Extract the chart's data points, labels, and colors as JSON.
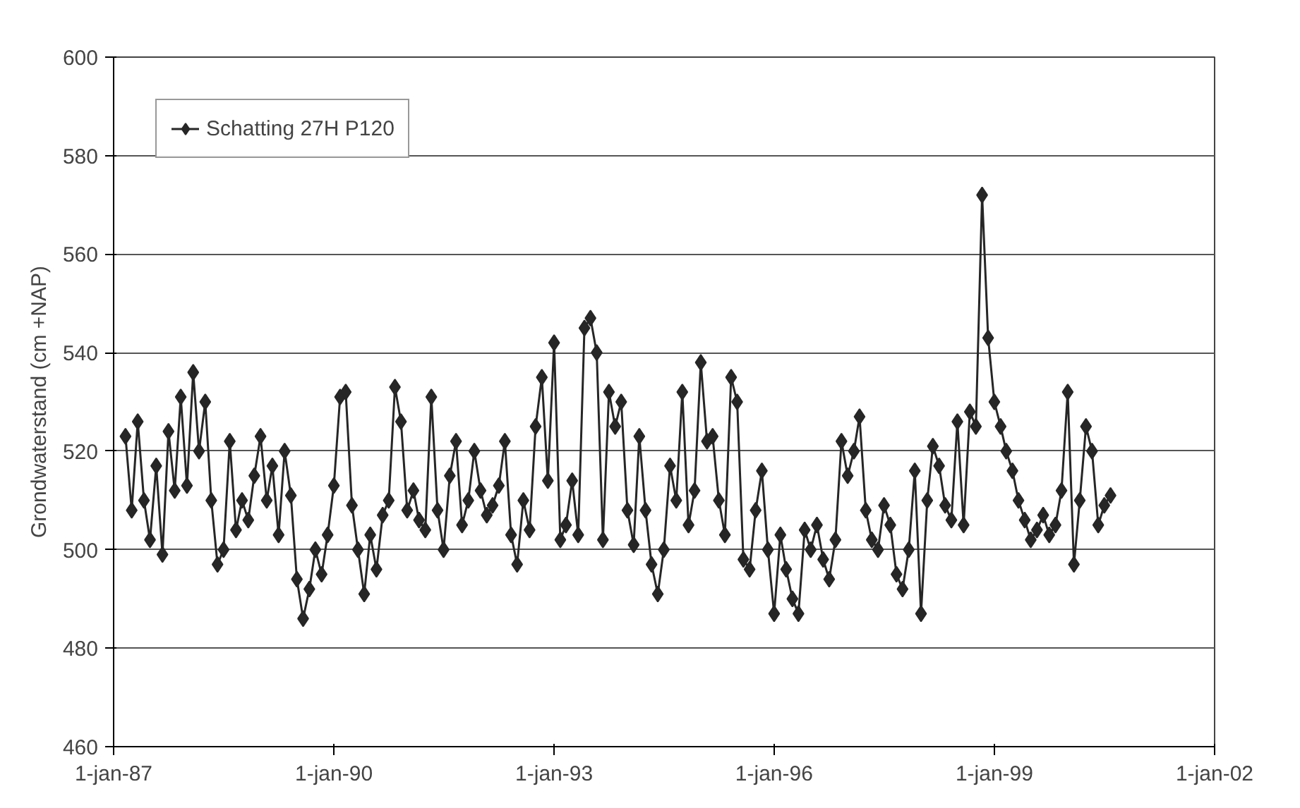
{
  "chart_data": {
    "type": "line",
    "ylabel": "Grondwaterstand (cm +NAP)",
    "x": [
      "1987-03",
      "1987-04",
      "1987-05",
      "1987-06",
      "1987-07",
      "1987-08",
      "1987-09",
      "1987-10",
      "1987-11",
      "1987-12",
      "1988-01",
      "1988-02",
      "1988-03",
      "1988-04",
      "1988-05",
      "1988-06",
      "1988-07",
      "1988-08",
      "1988-09",
      "1988-10",
      "1988-11",
      "1988-12",
      "1989-01",
      "1989-02",
      "1989-03",
      "1989-04",
      "1989-05",
      "1989-06",
      "1989-07",
      "1989-08",
      "1989-09",
      "1989-10",
      "1989-11",
      "1989-12",
      "1990-01",
      "1990-02",
      "1990-03",
      "1990-04",
      "1990-05",
      "1990-06",
      "1990-07",
      "1990-08",
      "1990-09",
      "1990-10",
      "1990-11",
      "1990-12",
      "1991-01",
      "1991-02",
      "1991-03",
      "1991-04",
      "1991-05",
      "1991-06",
      "1991-07",
      "1991-08",
      "1991-09",
      "1991-10",
      "1991-11",
      "1991-12",
      "1992-01",
      "1992-02",
      "1992-03",
      "1992-04",
      "1992-05",
      "1992-06",
      "1992-07",
      "1992-08",
      "1992-09",
      "1992-10",
      "1992-11",
      "1992-12",
      "1993-01",
      "1993-02",
      "1993-03",
      "1993-04",
      "1993-05",
      "1993-06",
      "1993-07",
      "1993-08",
      "1993-09",
      "1993-10",
      "1993-11",
      "1993-12",
      "1994-01",
      "1994-02",
      "1994-03",
      "1994-04",
      "1994-05",
      "1994-06",
      "1994-07",
      "1994-08",
      "1994-09",
      "1994-10",
      "1994-11",
      "1994-12",
      "1995-01",
      "1995-02",
      "1995-03",
      "1995-04",
      "1995-05",
      "1995-06",
      "1995-07",
      "1995-08",
      "1995-09",
      "1995-10",
      "1995-11",
      "1995-12",
      "1996-01",
      "1996-02",
      "1996-03",
      "1996-04",
      "1996-05",
      "1996-06",
      "1996-07",
      "1996-08",
      "1996-09",
      "1996-10",
      "1996-11",
      "1996-12",
      "1997-01",
      "1997-02",
      "1997-03",
      "1997-04",
      "1997-05",
      "1997-06",
      "1997-07",
      "1997-08",
      "1997-09",
      "1997-10",
      "1997-11",
      "1997-12",
      "1998-01",
      "1998-02",
      "1998-03",
      "1998-04",
      "1998-05",
      "1998-06",
      "1998-07",
      "1998-08",
      "1998-09",
      "1998-10",
      "1998-11",
      "1998-12",
      "1999-01",
      "1999-02",
      "1999-03",
      "1999-04",
      "1999-05",
      "1999-06",
      "1999-07",
      "1999-08",
      "1999-09",
      "1999-10",
      "1999-11",
      "1999-12",
      "2000-01",
      "2000-02",
      "2000-03",
      "2000-04",
      "2000-05",
      "2000-06",
      "2000-07",
      "2000-08"
    ],
    "series": [
      {
        "name": "Schatting 27H P120",
        "color": "#262626",
        "values": [
          523,
          508,
          526,
          510,
          502,
          517,
          499,
          524,
          512,
          531,
          513,
          536,
          520,
          530,
          510,
          497,
          500,
          522,
          504,
          510,
          506,
          515,
          523,
          510,
          517,
          503,
          520,
          511,
          494,
          486,
          492,
          500,
          495,
          503,
          513,
          531,
          532,
          509,
          500,
          491,
          503,
          496,
          507,
          510,
          533,
          526,
          508,
          512,
          506,
          504,
          531,
          508,
          500,
          515,
          522,
          505,
          510,
          520,
          512,
          507,
          509,
          513,
          522,
          503,
          497,
          510,
          504,
          525,
          535,
          514,
          542,
          502,
          505,
          514,
          503,
          545,
          547,
          540,
          502,
          532,
          525,
          530,
          508,
          501,
          523,
          508,
          497,
          491,
          500,
          517,
          510,
          532,
          505,
          512,
          538,
          522,
          523,
          510,
          503,
          535,
          530,
          498,
          496,
          508,
          516,
          500,
          487,
          503,
          496,
          490,
          487,
          504,
          500,
          505,
          498,
          494,
          502,
          522,
          515,
          520,
          527,
          508,
          502,
          500,
          509,
          505,
          495,
          492,
          500,
          516,
          487,
          510,
          521,
          517,
          509,
          506,
          526,
          505,
          528,
          525,
          572,
          543,
          530,
          525,
          520,
          516,
          510,
          506,
          502,
          504,
          507,
          503,
          505,
          512,
          532,
          497,
          510,
          525,
          520,
          505,
          509,
          511
        ]
      }
    ],
    "xlim": [
      "1987-01-01",
      "2002-01-01"
    ],
    "xticks": [
      {
        "value": "1987-01-01",
        "label": "1-jan-87"
      },
      {
        "value": "1990-01-01",
        "label": "1-jan-90"
      },
      {
        "value": "1993-01-01",
        "label": "1-jan-93"
      },
      {
        "value": "1996-01-01",
        "label": "1-jan-96"
      },
      {
        "value": "1999-01-01",
        "label": "1-jan-99"
      },
      {
        "value": "2002-01-01",
        "label": "1-jan-02"
      }
    ],
    "ylim": [
      460,
      600
    ],
    "yticks": [
      460,
      480,
      500,
      520,
      540,
      560,
      580,
      600
    ],
    "grid": "y",
    "legend": "top left",
    "marker": "diamond",
    "line_style": "solid"
  }
}
